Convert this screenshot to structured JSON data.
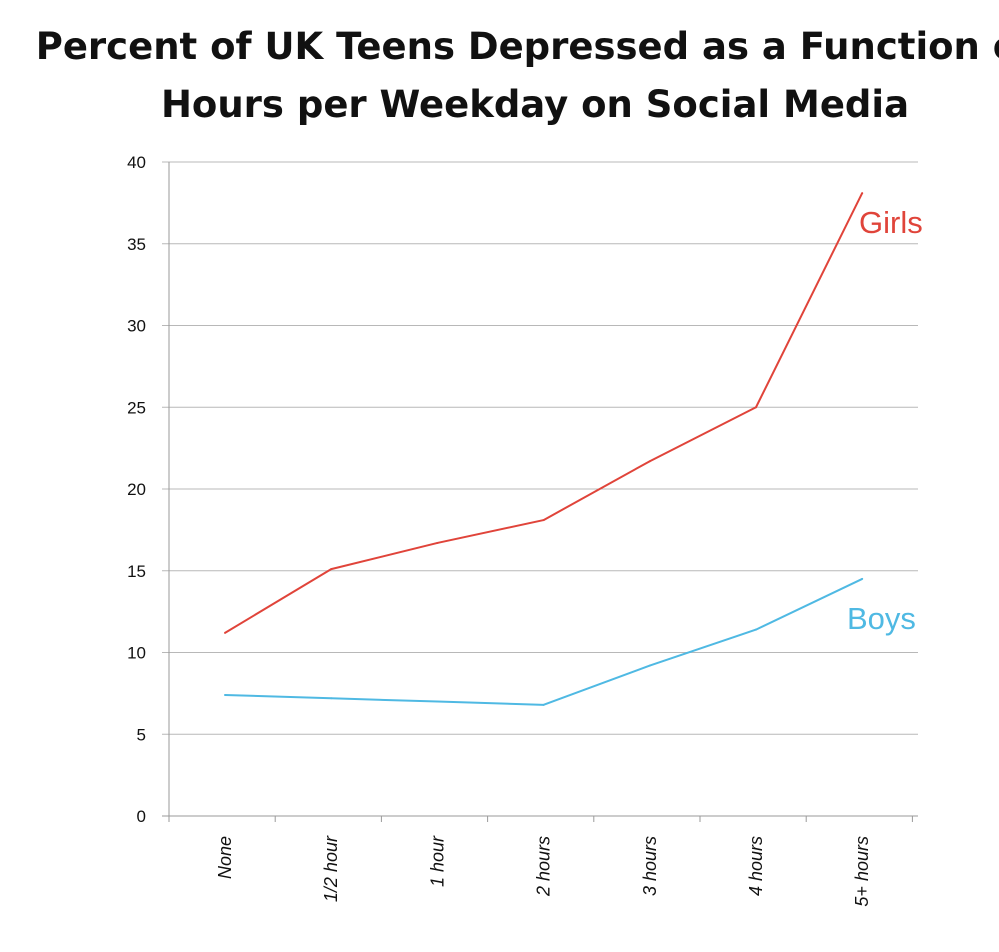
{
  "chart_data": {
    "type": "line",
    "title_line1": "Percent of UK Teens Depressed as a Function of",
    "title_line2": "Hours per Weekday on Social Media",
    "xlabel": "",
    "ylabel": "",
    "categories": [
      "None",
      "1/2 hour",
      "1 hour",
      "2 hours",
      "3 hours",
      "4 hours",
      "5+ hours"
    ],
    "yticks": [
      0,
      5,
      10,
      15,
      20,
      25,
      30,
      35,
      40
    ],
    "ylim": [
      0,
      40
    ],
    "grid": true,
    "series": [
      {
        "name": "Girls",
        "color": "#e0443a",
        "values": [
          11.2,
          15.1,
          16.7,
          18.1,
          21.7,
          25.0,
          38.1
        ]
      },
      {
        "name": "Boys",
        "color": "#4fb9e3",
        "values": [
          7.4,
          7.2,
          7.0,
          6.8,
          9.2,
          11.4,
          14.5
        ]
      }
    ]
  }
}
